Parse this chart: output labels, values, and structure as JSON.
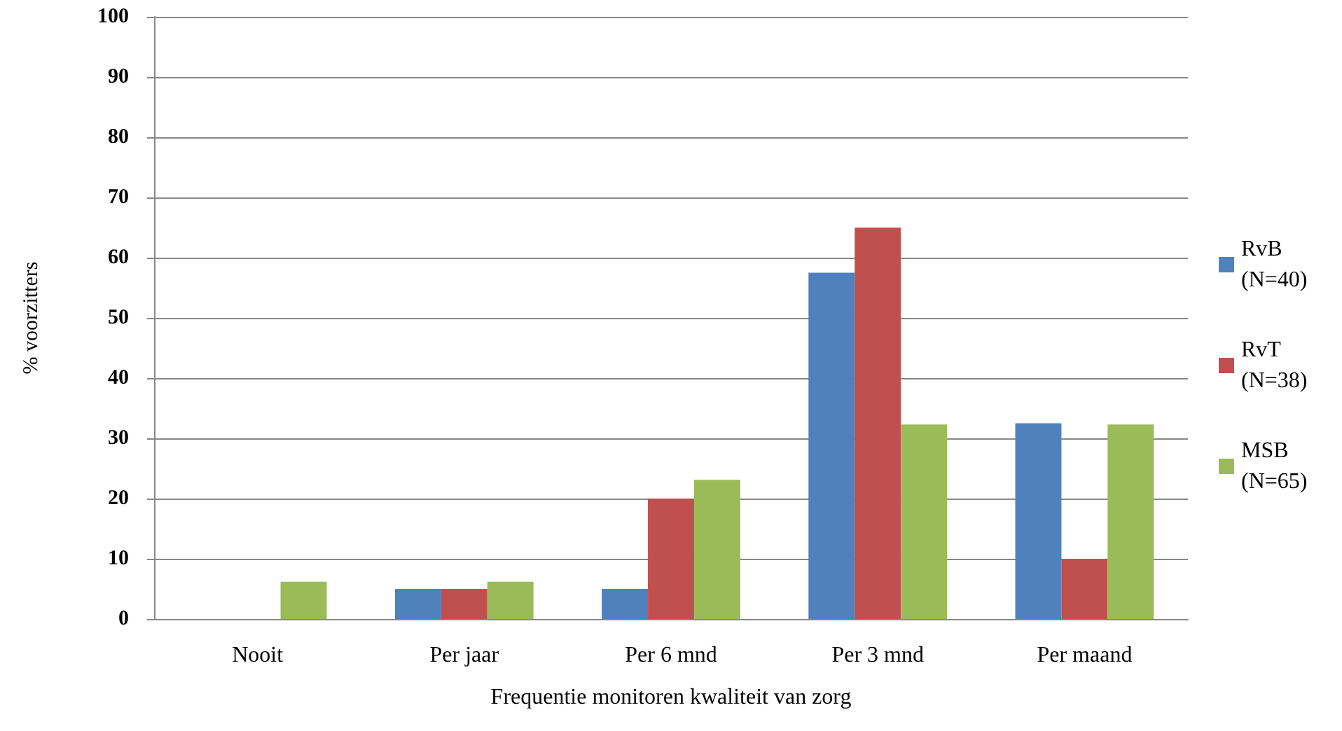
{
  "chart_data": {
    "type": "bar",
    "xlabel": "Frequentie monitoren kwaliteit van zorg",
    "ylabel": "% voorzitters",
    "categories": [
      "Nooit",
      "Per jaar",
      "Per 6 mnd",
      "Per 3 mnd",
      "Per maand"
    ],
    "series": [
      {
        "name": "RvB (N=40)",
        "color": "#4f81bd",
        "values": [
          0,
          5,
          5,
          57.5,
          32.5
        ]
      },
      {
        "name": "RvT (N=38)",
        "color": "#c0504d",
        "values": [
          0,
          5,
          20,
          65,
          10
        ]
      },
      {
        "name": "MSB (N=65)",
        "color": "#9bbb59",
        "values": [
          6.2,
          6.2,
          23.1,
          32.3,
          32.3
        ]
      }
    ],
    "ylim": [
      0,
      100
    ],
    "yticks": [
      0,
      10,
      20,
      30,
      40,
      50,
      60,
      70,
      80,
      90,
      100
    ],
    "grid": "y",
    "legend": "right"
  }
}
